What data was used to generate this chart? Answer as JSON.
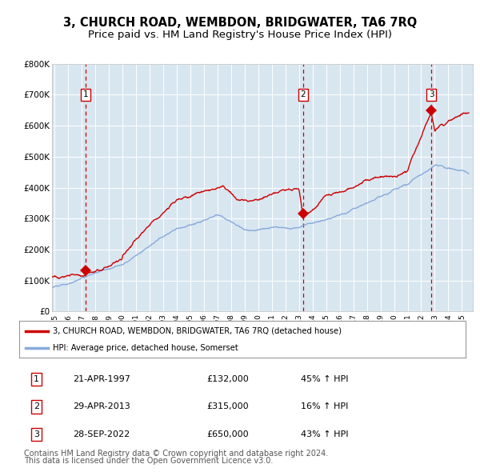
{
  "title": "3, CHURCH ROAD, WEMBDON, BRIDGWATER, TA6 7RQ",
  "subtitle": "Price paid vs. HM Land Registry's House Price Index (HPI)",
  "title_fontsize": 10.5,
  "subtitle_fontsize": 9.5,
  "plot_bg_color": "#d8e6f0",
  "ylim": [
    0,
    800000
  ],
  "yticks": [
    0,
    100000,
    200000,
    300000,
    400000,
    500000,
    600000,
    700000,
    800000
  ],
  "ytick_labels": [
    "£0",
    "£100K",
    "£200K",
    "£300K",
    "£400K",
    "£500K",
    "£600K",
    "£700K",
    "£800K"
  ],
  "xmin": 1994.8,
  "xmax": 2025.8,
  "xticks": [
    1995,
    1996,
    1997,
    1998,
    1999,
    2000,
    2001,
    2002,
    2003,
    2004,
    2005,
    2006,
    2007,
    2008,
    2009,
    2010,
    2011,
    2012,
    2013,
    2014,
    2015,
    2016,
    2017,
    2018,
    2019,
    2020,
    2021,
    2022,
    2023,
    2024,
    2025
  ],
  "red_line_color": "#cc0000",
  "blue_line_color": "#88aadd",
  "sale_marker_color": "#cc0000",
  "dashed_line_color": "#cc0000",
  "legend_label_red": "3, CHURCH ROAD, WEMBDON, BRIDGWATER, TA6 7RQ (detached house)",
  "legend_label_blue": "HPI: Average price, detached house, Somerset",
  "sales": [
    {
      "num": 1,
      "date_label": "21-APR-1997",
      "year": 1997.3,
      "price": 132000,
      "pct": "45%",
      "dir": "↑"
    },
    {
      "num": 2,
      "date_label": "29-APR-2013",
      "year": 2013.3,
      "price": 315000,
      "pct": "16%",
      "dir": "↑"
    },
    {
      "num": 3,
      "date_label": "28-SEP-2022",
      "year": 2022.75,
      "price": 650000,
      "pct": "43%",
      "dir": "↑"
    }
  ],
  "footnote_line1": "Contains HM Land Registry data © Crown copyright and database right 2024.",
  "footnote_line2": "This data is licensed under the Open Government Licence v3.0.",
  "footnote_fontsize": 7.0
}
